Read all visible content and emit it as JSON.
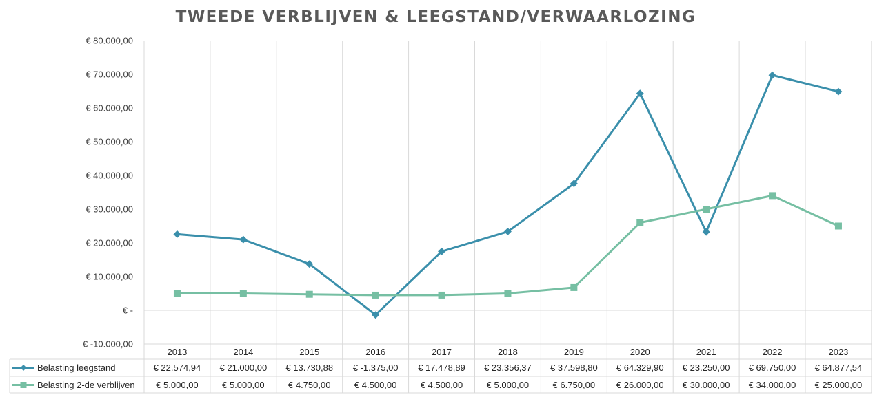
{
  "chart_data": {
    "type": "line",
    "title": "TWEEDE VERBLIJVEN & LEEGSTAND/VERWAARLOZING",
    "categories": [
      "2013",
      "2014",
      "2015",
      "2016",
      "2017",
      "2018",
      "2019",
      "2020",
      "2021",
      "2022",
      "2023"
    ],
    "ylim": [
      -10000,
      80000
    ],
    "yticks": [
      80000,
      70000,
      60000,
      50000,
      40000,
      30000,
      20000,
      10000,
      0,
      -10000
    ],
    "ytick_labels": [
      "€ 80.000,00",
      "€ 70.000,00",
      "€ 60.000,00",
      "€ 50.000,00",
      "€ 40.000,00",
      "€ 30.000,00",
      "€ 20.000,00",
      "€ 10.000,00",
      "€ -",
      "€ -10.000,00"
    ],
    "grid": "vertical",
    "legend": "data-table",
    "series": [
      {
        "name": "Belasting leegstand",
        "color": "#3A8FAB",
        "marker": "diamond",
        "values": [
          22574.94,
          21000.0,
          13730.88,
          -1375.0,
          17478.89,
          23356.37,
          37598.8,
          64329.9,
          23250.0,
          69750.0,
          64877.54
        ],
        "labels": [
          "€ 22.574,94",
          "€ 21.000,00",
          "€ 13.730,88",
          "€ -1.375,00",
          "€ 17.478,89",
          "€ 23.356,37",
          "€ 37.598,80",
          "€ 64.329,90",
          "€ 23.250,00",
          "€ 69.750,00",
          "€ 64.877,54"
        ]
      },
      {
        "name": "Belasting 2-de verblijven",
        "color": "#76BFA3",
        "marker": "square",
        "values": [
          5000,
          5000,
          4750,
          4500,
          4500,
          5000,
          6750,
          26000,
          30000,
          34000,
          25000
        ],
        "labels": [
          "€ 5.000,00",
          "€ 5.000,00",
          "€ 4.750,00",
          "€ 4.500,00",
          "€ 4.500,00",
          "€ 5.000,00",
          "€ 6.750,00",
          "€ 26.000,00",
          "€ 30.000,00",
          "€ 34.000,00",
          "€ 25.000,00"
        ]
      }
    ]
  }
}
